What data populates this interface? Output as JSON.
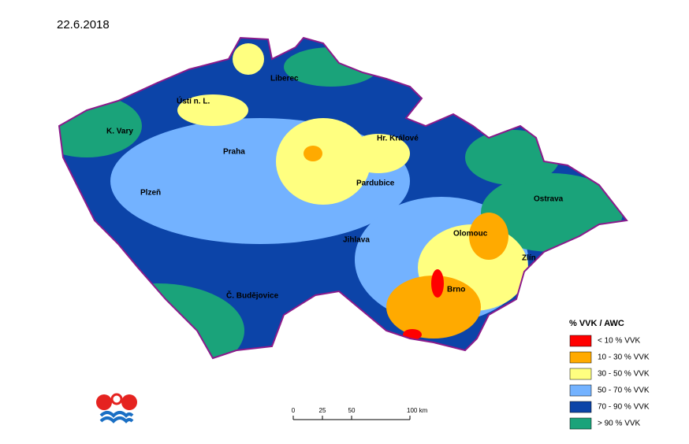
{
  "date": "22.6.2018",
  "cities": [
    "Liberec",
    "Ústí n. L.",
    "K. Vary",
    "Praha",
    "Hr. Králové",
    "Pardubice",
    "Plzeň",
    "Ostrava",
    "Olomouc",
    "Jihlava",
    "Zlín",
    "Brno",
    "Č. Budějovice"
  ],
  "legend": {
    "title": "% VVK / AWC",
    "items": [
      {
        "label": "< 10 % VVK",
        "color": "#ff0000"
      },
      {
        "label": "10 - 30 % VVK",
        "color": "#ffaa00"
      },
      {
        "label": "30 - 50 % VVK",
        "color": "#ffff80"
      },
      {
        "label": "50 - 70 % VVK",
        "color": "#73b2ff"
      },
      {
        "label": "70 - 90 % VVK",
        "color": "#0c44a8"
      },
      {
        "label": "> 90 % VVK",
        "color": "#1aa37a"
      }
    ]
  },
  "scale": [
    "0",
    "25",
    "50",
    "100 km"
  ]
}
